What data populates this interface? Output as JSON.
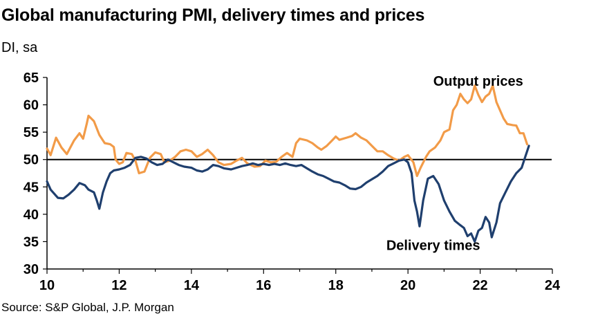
{
  "title": "Global manufacturing PMI, delivery times and prices",
  "subtitle": "DI, sa",
  "source": "Source: S&P Global, J.P. Morgan",
  "chart_data": {
    "type": "line",
    "xlim": [
      10,
      24
    ],
    "ylim": [
      30,
      65
    ],
    "x_ticks": [
      "10",
      "12",
      "14",
      "16",
      "18",
      "20",
      "22",
      "24"
    ],
    "y_ticks": [
      "65",
      "60",
      "55",
      "50",
      "45",
      "40",
      "35",
      "30"
    ],
    "reference_line": 50,
    "grid": false,
    "series": [
      {
        "name": "Output prices",
        "color": "#F29B48",
        "points": [
          [
            10.0,
            52.0
          ],
          [
            10.1,
            50.8
          ],
          [
            10.25,
            54.0
          ],
          [
            10.4,
            52.2
          ],
          [
            10.55,
            51.0
          ],
          [
            10.75,
            53.5
          ],
          [
            10.9,
            54.8
          ],
          [
            11.0,
            53.8
          ],
          [
            11.1,
            56.5
          ],
          [
            11.15,
            58.0
          ],
          [
            11.3,
            57.0
          ],
          [
            11.45,
            54.5
          ],
          [
            11.6,
            53.0
          ],
          [
            11.75,
            52.8
          ],
          [
            11.85,
            52.3
          ],
          [
            11.9,
            50.0
          ],
          [
            12.0,
            49.2
          ],
          [
            12.1,
            49.5
          ],
          [
            12.2,
            51.2
          ],
          [
            12.35,
            51.0
          ],
          [
            12.45,
            49.8
          ],
          [
            12.55,
            47.5
          ],
          [
            12.7,
            47.8
          ],
          [
            12.85,
            50.3
          ],
          [
            13.0,
            51.3
          ],
          [
            13.15,
            51.0
          ],
          [
            13.25,
            49.5
          ],
          [
            13.4,
            49.8
          ],
          [
            13.55,
            50.5
          ],
          [
            13.7,
            51.5
          ],
          [
            13.85,
            51.8
          ],
          [
            14.0,
            51.5
          ],
          [
            14.15,
            50.5
          ],
          [
            14.3,
            51.0
          ],
          [
            14.45,
            51.8
          ],
          [
            14.6,
            50.8
          ],
          [
            14.75,
            49.5
          ],
          [
            14.9,
            49.0
          ],
          [
            15.1,
            49.2
          ],
          [
            15.25,
            49.8
          ],
          [
            15.4,
            50.3
          ],
          [
            15.55,
            49.3
          ],
          [
            15.75,
            48.7
          ],
          [
            15.9,
            48.8
          ],
          [
            16.05,
            49.8
          ],
          [
            16.2,
            49.5
          ],
          [
            16.35,
            49.6
          ],
          [
            16.5,
            50.5
          ],
          [
            16.65,
            51.2
          ],
          [
            16.8,
            50.5
          ],
          [
            16.9,
            53.0
          ],
          [
            17.0,
            53.8
          ],
          [
            17.2,
            53.5
          ],
          [
            17.35,
            53.0
          ],
          [
            17.5,
            52.2
          ],
          [
            17.6,
            51.8
          ],
          [
            17.75,
            52.5
          ],
          [
            17.9,
            53.5
          ],
          [
            18.0,
            54.2
          ],
          [
            18.1,
            53.6
          ],
          [
            18.3,
            54.0
          ],
          [
            18.45,
            54.3
          ],
          [
            18.55,
            54.8
          ],
          [
            18.7,
            54.0
          ],
          [
            18.85,
            53.5
          ],
          [
            19.0,
            52.5
          ],
          [
            19.15,
            51.5
          ],
          [
            19.3,
            51.5
          ],
          [
            19.45,
            50.8
          ],
          [
            19.6,
            50.2
          ],
          [
            19.75,
            49.8
          ],
          [
            19.9,
            50.5
          ],
          [
            20.0,
            50.8
          ],
          [
            20.15,
            49.5
          ],
          [
            20.25,
            47.0
          ],
          [
            20.35,
            48.5
          ],
          [
            20.5,
            50.5
          ],
          [
            20.6,
            51.5
          ],
          [
            20.75,
            52.2
          ],
          [
            20.9,
            53.5
          ],
          [
            21.0,
            55.0
          ],
          [
            21.15,
            55.5
          ],
          [
            21.25,
            59.0
          ],
          [
            21.35,
            60.0
          ],
          [
            21.45,
            62.0
          ],
          [
            21.55,
            61.0
          ],
          [
            21.65,
            60.3
          ],
          [
            21.75,
            61.0
          ],
          [
            21.85,
            63.5
          ],
          [
            21.95,
            61.8
          ],
          [
            22.05,
            60.5
          ],
          [
            22.15,
            61.5
          ],
          [
            22.25,
            62.0
          ],
          [
            22.35,
            63.5
          ],
          [
            22.45,
            60.5
          ],
          [
            22.55,
            59.0
          ],
          [
            22.65,
            57.5
          ],
          [
            22.75,
            56.5
          ],
          [
            22.9,
            56.3
          ],
          [
            23.0,
            56.2
          ],
          [
            23.1,
            54.8
          ],
          [
            23.2,
            54.8
          ],
          [
            23.3,
            52.8
          ]
        ]
      },
      {
        "name": "Delivery times",
        "color": "#1F3F6E",
        "points": [
          [
            10.0,
            46.0
          ],
          [
            10.1,
            44.5
          ],
          [
            10.3,
            43.0
          ],
          [
            10.45,
            42.9
          ],
          [
            10.6,
            43.6
          ],
          [
            10.75,
            44.5
          ],
          [
            10.9,
            45.7
          ],
          [
            11.05,
            45.3
          ],
          [
            11.15,
            44.5
          ],
          [
            11.3,
            44.0
          ],
          [
            11.38,
            42.5
          ],
          [
            11.45,
            41.0
          ],
          [
            11.55,
            44.0
          ],
          [
            11.65,
            46.0
          ],
          [
            11.75,
            47.5
          ],
          [
            11.85,
            48.0
          ],
          [
            12.0,
            48.2
          ],
          [
            12.15,
            48.5
          ],
          [
            12.3,
            49.0
          ],
          [
            12.45,
            50.3
          ],
          [
            12.6,
            50.5
          ],
          [
            12.75,
            50.2
          ],
          [
            12.9,
            49.5
          ],
          [
            13.05,
            49.0
          ],
          [
            13.2,
            49.2
          ],
          [
            13.35,
            50.0
          ],
          [
            13.5,
            49.5
          ],
          [
            13.65,
            49.0
          ],
          [
            13.8,
            48.7
          ],
          [
            14.0,
            48.5
          ],
          [
            14.15,
            48.0
          ],
          [
            14.3,
            47.8
          ],
          [
            14.45,
            48.2
          ],
          [
            14.6,
            49.0
          ],
          [
            14.75,
            48.8
          ],
          [
            14.9,
            48.4
          ],
          [
            15.1,
            48.2
          ],
          [
            15.25,
            48.5
          ],
          [
            15.4,
            48.8
          ],
          [
            15.55,
            49.0
          ],
          [
            15.7,
            49.3
          ],
          [
            15.85,
            49.0
          ],
          [
            16.0,
            49.2
          ],
          [
            16.15,
            49.0
          ],
          [
            16.3,
            49.2
          ],
          [
            16.45,
            49.0
          ],
          [
            16.6,
            49.3
          ],
          [
            16.75,
            49.0
          ],
          [
            16.9,
            48.8
          ],
          [
            17.05,
            49.0
          ],
          [
            17.2,
            48.4
          ],
          [
            17.35,
            47.8
          ],
          [
            17.5,
            47.3
          ],
          [
            17.65,
            47.0
          ],
          [
            17.8,
            46.5
          ],
          [
            17.95,
            46.0
          ],
          [
            18.1,
            45.8
          ],
          [
            18.25,
            45.3
          ],
          [
            18.4,
            44.7
          ],
          [
            18.55,
            44.6
          ],
          [
            18.7,
            45.0
          ],
          [
            18.85,
            45.8
          ],
          [
            19.0,
            46.4
          ],
          [
            19.15,
            47.0
          ],
          [
            19.3,
            47.8
          ],
          [
            19.45,
            48.8
          ],
          [
            19.6,
            49.3
          ],
          [
            19.75,
            49.8
          ],
          [
            19.9,
            50.0
          ],
          [
            20.0,
            49.5
          ],
          [
            20.1,
            47.5
          ],
          [
            20.18,
            42.5
          ],
          [
            20.25,
            40.5
          ],
          [
            20.32,
            37.8
          ],
          [
            20.42,
            42.5
          ],
          [
            20.55,
            46.5
          ],
          [
            20.7,
            47.0
          ],
          [
            20.85,
            45.5
          ],
          [
            21.0,
            42.5
          ],
          [
            21.15,
            40.5
          ],
          [
            21.3,
            38.8
          ],
          [
            21.45,
            38.0
          ],
          [
            21.55,
            37.5
          ],
          [
            21.65,
            36.0
          ],
          [
            21.75,
            36.5
          ],
          [
            21.85,
            35.0
          ],
          [
            21.95,
            37.0
          ],
          [
            22.05,
            37.5
          ],
          [
            22.15,
            39.5
          ],
          [
            22.25,
            38.5
          ],
          [
            22.32,
            35.8
          ],
          [
            22.45,
            38.5
          ],
          [
            22.55,
            42.0
          ],
          [
            22.7,
            44.0
          ],
          [
            22.85,
            46.0
          ],
          [
            23.0,
            47.5
          ],
          [
            23.15,
            48.5
          ],
          [
            23.25,
            50.5
          ],
          [
            23.35,
            52.5
          ]
        ]
      }
    ],
    "annotations": [
      {
        "text": "Output prices",
        "x": 20.7,
        "y": 63.5
      },
      {
        "text": "Delivery times",
        "x": 19.4,
        "y": 33.5
      }
    ]
  }
}
